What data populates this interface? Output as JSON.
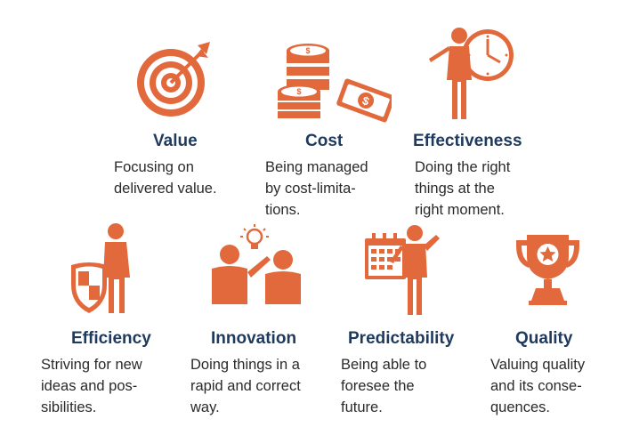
{
  "colors": {
    "accent": "#e2693b",
    "title": "#1f3a5c",
    "text": "#2a2a2a"
  },
  "items": [
    {
      "icon": "target-icon",
      "title": "Value",
      "desc": "Focusing on\ndelivered value."
    },
    {
      "icon": "coins-money-icon",
      "title": "Cost",
      "desc": "Being managed\nby cost-limita-\ntions."
    },
    {
      "icon": "person-clock-icon",
      "title": "Effectiveness",
      "desc": "Doing the right\nthings at the\nright moment."
    },
    {
      "icon": "person-shield-icon",
      "title": "Efficiency",
      "desc": "Striving for new\nideas and pos-\nsibilities."
    },
    {
      "icon": "people-lightbulb-icon",
      "title": "Innovation",
      "desc": "Doing things in a\nrapid and correct\nway."
    },
    {
      "icon": "person-calendar-icon",
      "title": "Predictability",
      "desc": "Being able to\nforesee the\nfuture."
    },
    {
      "icon": "trophy-icon",
      "title": "Quality",
      "desc": "Valuing quality\nand its conse-\nquences."
    }
  ]
}
